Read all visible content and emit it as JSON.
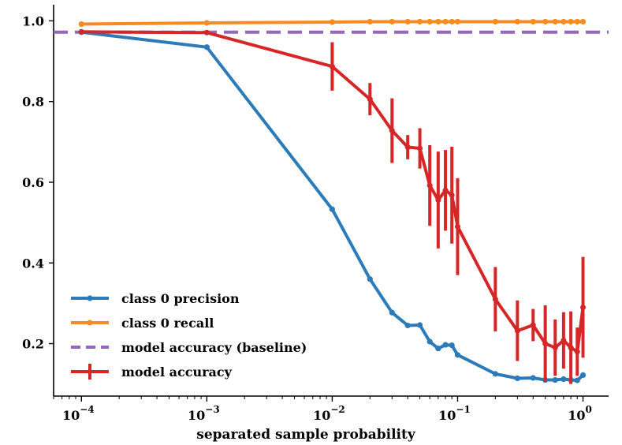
{
  "chart_data": {
    "type": "line",
    "xlabel": "separated sample probability",
    "ylabel": "",
    "xscale": "log",
    "xlim": [
      6e-05,
      1.6
    ],
    "ylim": [
      0.07,
      1.04
    ],
    "legend_position": "lower-left",
    "x_ticks": [
      {
        "value": 0.0001,
        "base": "10",
        "exp": "−4"
      },
      {
        "value": 0.001,
        "base": "10",
        "exp": "−3"
      },
      {
        "value": 0.01,
        "base": "10",
        "exp": "−2"
      },
      {
        "value": 0.1,
        "base": "10",
        "exp": "−1"
      },
      {
        "value": 1,
        "base": "10",
        "exp": "0"
      }
    ],
    "y_ticks": [
      {
        "value": 0.2,
        "label": "0.2"
      },
      {
        "value": 0.4,
        "label": "0.4"
      },
      {
        "value": 0.6,
        "label": "0.6"
      },
      {
        "value": 0.8,
        "label": "0.8"
      },
      {
        "value": 1.0,
        "label": "1.0"
      }
    ],
    "x": [
      0.0001,
      0.001,
      0.01,
      0.02,
      0.03,
      0.04,
      0.05,
      0.06,
      0.07,
      0.08,
      0.09,
      0.1,
      0.2,
      0.3,
      0.4,
      0.5,
      0.6,
      0.7,
      0.8,
      0.9,
      1.0
    ],
    "series": [
      {
        "name": "class 0 precision",
        "color": "#2b7bba",
        "style": "line-marker",
        "values": [
          0.972,
          0.935,
          0.533,
          0.36,
          0.277,
          0.245,
          0.246,
          0.205,
          0.188,
          0.197,
          0.196,
          0.172,
          0.125,
          0.114,
          0.115,
          0.11,
          0.11,
          0.112,
          0.11,
          0.109,
          0.122
        ]
      },
      {
        "name": "class 0 recall",
        "color": "#f58b23",
        "style": "line-marker",
        "values": [
          0.992,
          0.995,
          0.997,
          0.998,
          0.998,
          0.998,
          0.998,
          0.998,
          0.998,
          0.998,
          0.998,
          0.998,
          0.998,
          0.998,
          0.998,
          0.998,
          0.998,
          0.998,
          0.998,
          0.998,
          0.998
        ]
      },
      {
        "name": "model accuracy (baseline)",
        "color": "#9467bd",
        "style": "dashed",
        "constant": 0.972
      },
      {
        "name": "model accuracy",
        "color": "#d62728",
        "style": "errorbar",
        "values": [
          0.973,
          0.971,
          0.887,
          0.806,
          0.728,
          0.687,
          0.684,
          0.592,
          0.556,
          0.58,
          0.568,
          0.49,
          0.31,
          0.232,
          0.246,
          0.2,
          0.19,
          0.208,
          0.19,
          0.18,
          0.29
        ],
        "errors": [
          0.005,
          0.005,
          0.06,
          0.04,
          0.08,
          0.03,
          0.05,
          0.1,
          0.12,
          0.1,
          0.12,
          0.12,
          0.08,
          0.075,
          0.04,
          0.095,
          0.07,
          0.07,
          0.09,
          0.06,
          0.125
        ]
      }
    ]
  }
}
